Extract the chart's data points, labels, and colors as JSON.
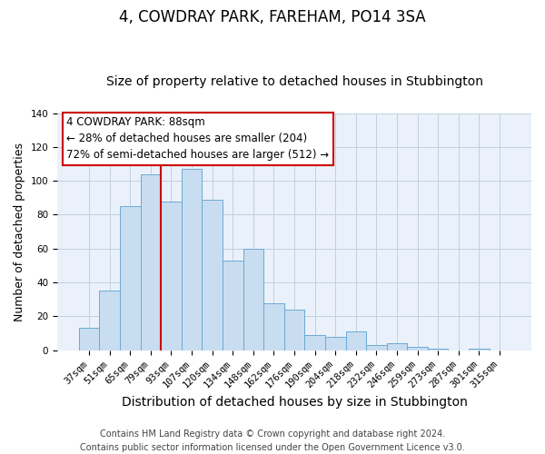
{
  "title": "4, COWDRAY PARK, FAREHAM, PO14 3SA",
  "subtitle": "Size of property relative to detached houses in Stubbington",
  "xlabel": "Distribution of detached houses by size in Stubbington",
  "ylabel": "Number of detached properties",
  "bar_labels": [
    "37sqm",
    "51sqm",
    "65sqm",
    "79sqm",
    "93sqm",
    "107sqm",
    "120sqm",
    "134sqm",
    "148sqm",
    "162sqm",
    "176sqm",
    "190sqm",
    "204sqm",
    "218sqm",
    "232sqm",
    "246sqm",
    "259sqm",
    "273sqm",
    "287sqm",
    "301sqm",
    "315sqm"
  ],
  "bar_values": [
    13,
    35,
    85,
    104,
    88,
    107,
    89,
    53,
    60,
    28,
    24,
    9,
    8,
    11,
    3,
    4,
    2,
    1,
    0,
    1,
    0
  ],
  "bar_color": "#c9ddf0",
  "bar_edge_color": "#6aaad4",
  "vline_color": "#cc0000",
  "ylim": [
    0,
    140
  ],
  "annotation_title": "4 COWDRAY PARK: 88sqm",
  "annotation_line1": "← 28% of detached houses are smaller (204)",
  "annotation_line2": "72% of semi-detached houses are larger (512) →",
  "annotation_box_color": "#ffffff",
  "annotation_box_edge_color": "#cc0000",
  "footer1": "Contains HM Land Registry data © Crown copyright and database right 2024.",
  "footer2": "Contains public sector information licensed under the Open Government Licence v3.0.",
  "title_fontsize": 12,
  "subtitle_fontsize": 10,
  "xlabel_fontsize": 10,
  "ylabel_fontsize": 9,
  "tick_fontsize": 7.5,
  "footer_fontsize": 7,
  "bg_color": "#eaf1fa",
  "fig_bg": "#ffffff"
}
